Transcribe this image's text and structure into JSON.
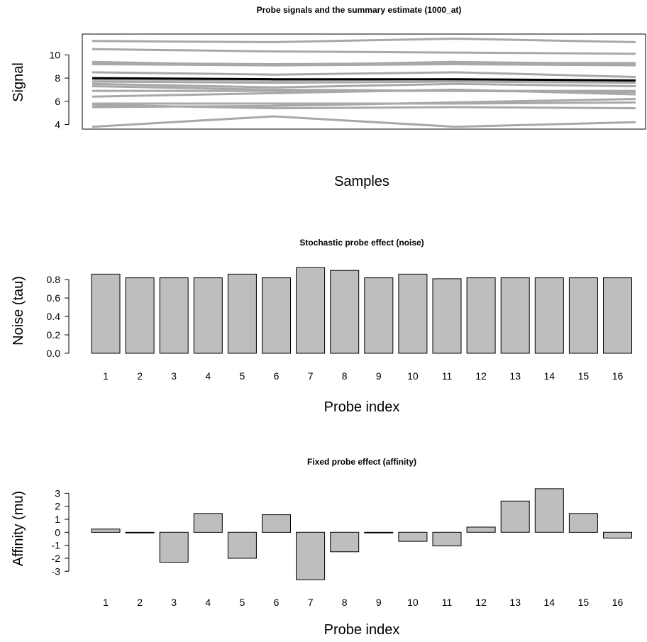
{
  "chart_data": [
    {
      "type": "line",
      "title": "Probe signals and the summary estimate (1000_at)",
      "xlabel": "Samples",
      "ylabel": "Signal",
      "ylim": [
        3.6,
        11.8
      ],
      "yticks": [
        4,
        6,
        8,
        10
      ],
      "x": [
        1,
        2,
        3,
        4
      ],
      "probe_color": "#a8a8a8",
      "summary_color": "#000000",
      "series": [
        {
          "values": [
            11.2,
            11.1,
            11.4,
            11.1
          ]
        },
        {
          "values": [
            10.5,
            10.3,
            10.2,
            10.1
          ]
        },
        {
          "values": [
            9.4,
            9.1,
            9.4,
            9.2
          ]
        },
        {
          "values": [
            9.3,
            9.2,
            9.3,
            9.3
          ]
        },
        {
          "values": [
            9.2,
            9.1,
            9.2,
            9.1
          ]
        },
        {
          "values": [
            8.5,
            8.3,
            8.5,
            8.1
          ]
        },
        {
          "values": [
            7.9,
            7.8,
            7.9,
            7.8
          ]
        },
        {
          "values": [
            7.7,
            7.6,
            7.7,
            7.6
          ]
        },
        {
          "values": [
            7.5,
            7.2,
            7.5,
            7.3
          ]
        },
        {
          "values": [
            7.3,
            7.0,
            6.9,
            6.9
          ]
        },
        {
          "values": [
            6.9,
            6.9,
            6.9,
            6.8
          ]
        },
        {
          "values": [
            6.4,
            6.7,
            7.0,
            6.6
          ]
        },
        {
          "values": [
            5.8,
            5.8,
            5.8,
            5.9
          ]
        },
        {
          "values": [
            5.7,
            5.4,
            5.5,
            5.4
          ]
        },
        {
          "values": [
            5.5,
            5.6,
            5.9,
            6.2
          ]
        },
        {
          "values": [
            3.8,
            4.7,
            3.8,
            4.2
          ]
        }
      ],
      "summary": {
        "values": [
          8.0,
          7.9,
          7.9,
          7.8
        ]
      }
    },
    {
      "type": "bar",
      "title": "Stochastic probe effect (noise)",
      "xlabel": "Probe index",
      "ylabel": "Noise (tau)",
      "ylim": [
        0,
        0.94
      ],
      "yticks": [
        "0.0",
        "0.2",
        "0.4",
        "0.6",
        "0.8"
      ],
      "categories": [
        "1",
        "2",
        "3",
        "4",
        "5",
        "6",
        "7",
        "8",
        "9",
        "10",
        "11",
        "12",
        "13",
        "14",
        "15",
        "16"
      ],
      "values": [
        0.86,
        0.82,
        0.82,
        0.82,
        0.86,
        0.82,
        0.93,
        0.9,
        0.82,
        0.86,
        0.81,
        0.82,
        0.82,
        0.82,
        0.82,
        0.82
      ],
      "bar_color": "#bebebe"
    },
    {
      "type": "bar",
      "title": "Fixed probe effect (affinity)",
      "xlabel": "Probe index",
      "ylabel": "Affinity (mu)",
      "ylim": [
        -3.8,
        3.4
      ],
      "yticks": [
        "-3",
        "-2",
        "-1",
        "0",
        "1",
        "2",
        "3"
      ],
      "categories": [
        "1",
        "2",
        "3",
        "4",
        "5",
        "6",
        "7",
        "8",
        "9",
        "10",
        "11",
        "12",
        "13",
        "14",
        "15",
        "16"
      ],
      "values": [
        0.25,
        -0.05,
        -2.3,
        1.45,
        -2.0,
        1.35,
        -3.65,
        -1.5,
        -0.05,
        -0.7,
        -1.05,
        0.4,
        2.4,
        3.35,
        1.45,
        -0.45
      ],
      "bar_color": "#bebebe"
    }
  ]
}
